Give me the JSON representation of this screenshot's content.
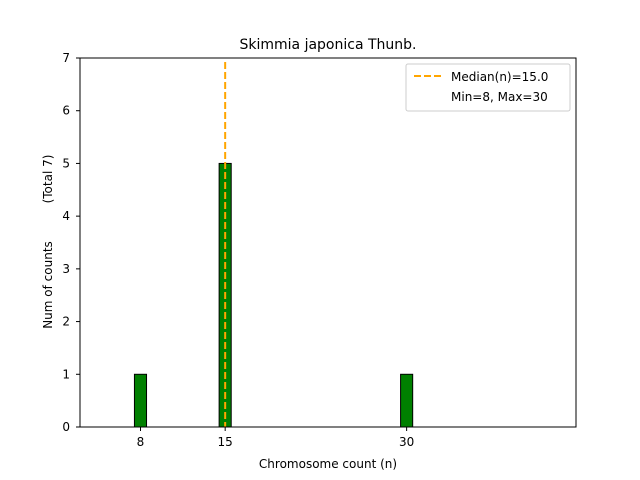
{
  "chart_data": {
    "type": "bar",
    "title": "Skimmia japonica Thunb.",
    "xlabel": "Chromosome count (n)",
    "ylabel": "Num of counts",
    "ylabel_total": "(Total 7)",
    "xlim": [
      3,
      44
    ],
    "ylim": [
      0,
      7
    ],
    "x": [
      8,
      15,
      30
    ],
    "values": [
      1,
      5,
      1
    ],
    "bar_width": 1,
    "xticks": [
      8,
      15,
      30
    ],
    "yticks": [
      0,
      1,
      2,
      3,
      4,
      5,
      6,
      7
    ],
    "bar_color": "#008000",
    "bar_edge_color": "#000000",
    "median": 15.0,
    "median_color": "#FFA500",
    "legend_position": "top-right",
    "legend": {
      "median_label": "Median(n)=15.0",
      "range_label": "Min=8, Max=30"
    },
    "grid": false
  }
}
